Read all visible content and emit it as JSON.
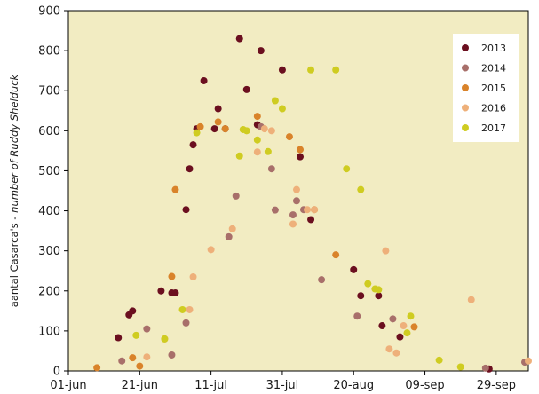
{
  "chart_data": {
    "type": "scatter",
    "title": "",
    "xlabel": "",
    "ylabel": "aantal Casarca's - number of Ruddy Shelduck",
    "ylabel_parts": [
      "aantal Casarca's - ",
      "number of Ruddy Shelduck"
    ],
    "x_is_date": true,
    "xlim": [
      "01-jun",
      "08-oct"
    ],
    "ylim": [
      0,
      900
    ],
    "x_ticks": [
      "01-jun",
      "21-jun",
      "11-jul",
      "31-jul",
      "20-aug",
      "09-sep",
      "29-sep"
    ],
    "y_ticks": [
      0,
      100,
      200,
      300,
      400,
      500,
      600,
      700,
      800,
      900
    ],
    "plot_background": "#f2ecc2",
    "grid": false,
    "legend_position": "top-right",
    "series": [
      {
        "name": "2013",
        "color": "#6b0f1f",
        "points": [
          {
            "x": "15-jun",
            "y": 83
          },
          {
            "x": "18-jun",
            "y": 140
          },
          {
            "x": "19-jun",
            "y": 150
          },
          {
            "x": "27-jun",
            "y": 200
          },
          {
            "x": "30-jun",
            "y": 195
          },
          {
            "x": "01-jul",
            "y": 195
          },
          {
            "x": "04-jul",
            "y": 403
          },
          {
            "x": "05-jul",
            "y": 505
          },
          {
            "x": "06-jul",
            "y": 565
          },
          {
            "x": "07-jul",
            "y": 605
          },
          {
            "x": "09-jul",
            "y": 725
          },
          {
            "x": "12-jul",
            "y": 605
          },
          {
            "x": "13-jul",
            "y": 655
          },
          {
            "x": "15-jul",
            "y": 605
          },
          {
            "x": "19-jul",
            "y": 830
          },
          {
            "x": "21-jul",
            "y": 703
          },
          {
            "x": "25-jul",
            "y": 800
          },
          {
            "x": "24-jul",
            "y": 615
          },
          {
            "x": "31-jul",
            "y": 752
          },
          {
            "x": "05-aug",
            "y": 535
          },
          {
            "x": "08-aug",
            "y": 378
          },
          {
            "x": "20-aug",
            "y": 253
          },
          {
            "x": "22-aug",
            "y": 188
          },
          {
            "x": "27-aug",
            "y": 188
          },
          {
            "x": "28-aug",
            "y": 113
          },
          {
            "x": "02-sep",
            "y": 85
          },
          {
            "x": "27-sep",
            "y": 5
          }
        ]
      },
      {
        "name": "2014",
        "color": "#a86f6a",
        "points": [
          {
            "x": "16-jun",
            "y": 25
          },
          {
            "x": "23-jun",
            "y": 105
          },
          {
            "x": "30-jun",
            "y": 40
          },
          {
            "x": "04-jul",
            "y": 120
          },
          {
            "x": "16-jul",
            "y": 335
          },
          {
            "x": "18-jul",
            "y": 437
          },
          {
            "x": "25-jul",
            "y": 610
          },
          {
            "x": "28-jul",
            "y": 505
          },
          {
            "x": "29-jul",
            "y": 402
          },
          {
            "x": "03-aug",
            "y": 390
          },
          {
            "x": "04-aug",
            "y": 425
          },
          {
            "x": "06-aug",
            "y": 403
          },
          {
            "x": "11-aug",
            "y": 228
          },
          {
            "x": "21-aug",
            "y": 137
          },
          {
            "x": "31-aug",
            "y": 130
          },
          {
            "x": "26-sep",
            "y": 7
          },
          {
            "x": "07-oct",
            "y": 22
          }
        ]
      },
      {
        "name": "2015",
        "color": "#d9832a",
        "points": [
          {
            "x": "09-jun",
            "y": 8
          },
          {
            "x": "19-jun",
            "y": 33
          },
          {
            "x": "21-jun",
            "y": 12
          },
          {
            "x": "30-jun",
            "y": 236
          },
          {
            "x": "01-jul",
            "y": 453
          },
          {
            "x": "08-jul",
            "y": 610
          },
          {
            "x": "13-jul",
            "y": 622
          },
          {
            "x": "15-jul",
            "y": 605
          },
          {
            "x": "24-jul",
            "y": 636
          },
          {
            "x": "02-aug",
            "y": 585
          },
          {
            "x": "05-aug",
            "y": 553
          },
          {
            "x": "09-aug",
            "y": 403
          },
          {
            "x": "15-aug",
            "y": 290
          },
          {
            "x": "06-sep",
            "y": 110
          }
        ]
      },
      {
        "name": "2016",
        "color": "#eeb07a",
        "points": [
          {
            "x": "23-jun",
            "y": 35
          },
          {
            "x": "28-jun",
            "y": 80
          },
          {
            "x": "05-jul",
            "y": 153
          },
          {
            "x": "06-jul",
            "y": 235
          },
          {
            "x": "11-jul",
            "y": 303
          },
          {
            "x": "17-jul",
            "y": 355
          },
          {
            "x": "24-jul",
            "y": 547
          },
          {
            "x": "26-jul",
            "y": 605
          },
          {
            "x": "28-jul",
            "y": 600
          },
          {
            "x": "03-aug",
            "y": 367
          },
          {
            "x": "04-aug",
            "y": 453
          },
          {
            "x": "07-aug",
            "y": 403
          },
          {
            "x": "09-aug",
            "y": 403
          },
          {
            "x": "29-aug",
            "y": 300
          },
          {
            "x": "30-aug",
            "y": 55
          },
          {
            "x": "01-sep",
            "y": 45
          },
          {
            "x": "22-sep",
            "y": 178
          },
          {
            "x": "03-sep",
            "y": 113
          },
          {
            "x": "08-oct",
            "y": 25
          }
        ]
      },
      {
        "name": "2017",
        "color": "#cfcc21",
        "points": [
          {
            "x": "20-jun",
            "y": 89
          },
          {
            "x": "28-jun",
            "y": 80
          },
          {
            "x": "03-jul",
            "y": 153
          },
          {
            "x": "07-jul",
            "y": 595
          },
          {
            "x": "19-jul",
            "y": 537
          },
          {
            "x": "20-jul",
            "y": 603
          },
          {
            "x": "21-jul",
            "y": 600
          },
          {
            "x": "24-jul",
            "y": 577
          },
          {
            "x": "27-jul",
            "y": 548
          },
          {
            "x": "29-jul",
            "y": 675
          },
          {
            "x": "31-jul",
            "y": 655
          },
          {
            "x": "08-aug",
            "y": 752
          },
          {
            "x": "15-aug",
            "y": 752
          },
          {
            "x": "18-aug",
            "y": 505
          },
          {
            "x": "22-aug",
            "y": 453
          },
          {
            "x": "24-aug",
            "y": 218
          },
          {
            "x": "26-aug",
            "y": 205
          },
          {
            "x": "27-aug",
            "y": 203
          },
          {
            "x": "04-sep",
            "y": 95
          },
          {
            "x": "05-sep",
            "y": 137
          },
          {
            "x": "13-sep",
            "y": 27
          },
          {
            "x": "19-sep",
            "y": 10
          }
        ]
      }
    ]
  }
}
